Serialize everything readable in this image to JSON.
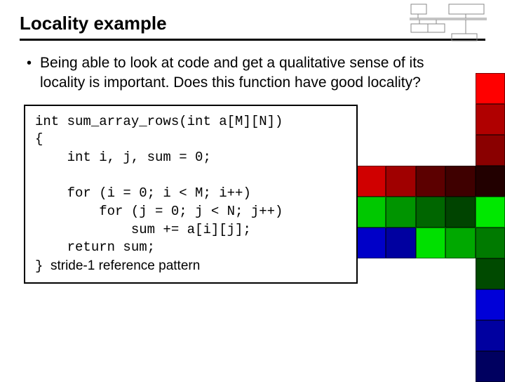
{
  "title": "Locality example",
  "bullet": "Being able to look at code and get a qualitative sense of its locality is important. Does this function have good locality?",
  "code": {
    "l1": "int sum_array_rows(int a[M][N])",
    "l2": "{",
    "l3": "    int i, j, sum = 0;",
    "l4": "",
    "l5": "    for (i = 0; i < M; i++)",
    "l6": "        for (j = 0; j < N; j++)",
    "l7": "            sum += a[i][j];",
    "l8": "    return sum;",
    "l9": "}",
    "stride": "  stride-1 reference pattern"
  },
  "grid": {
    "rows": [
      [
        "",
        "",
        "",
        "",
        "#ff0000"
      ],
      [
        "",
        "",
        "",
        "",
        "#b00000"
      ],
      [
        "",
        "",
        "",
        "",
        "#8a0000"
      ],
      [
        "#d00000",
        "#a00000",
        "#5c0000",
        "#3f0000",
        "#220000"
      ],
      [
        "#00c800",
        "#009400",
        "#006600",
        "#004400",
        "#00e800"
      ],
      [
        "#0000c8",
        "#0000a0",
        "#00e000",
        "#00a800",
        "#007a00"
      ],
      [
        "",
        "",
        "",
        "",
        "#004a00"
      ],
      [
        "",
        "",
        "",
        "",
        "#0000d8"
      ],
      [
        "",
        "",
        "",
        "",
        "#0000a0"
      ],
      [
        "",
        "",
        "",
        "",
        "#000060"
      ]
    ],
    "cell_size": 44,
    "border_color": "#000000"
  }
}
